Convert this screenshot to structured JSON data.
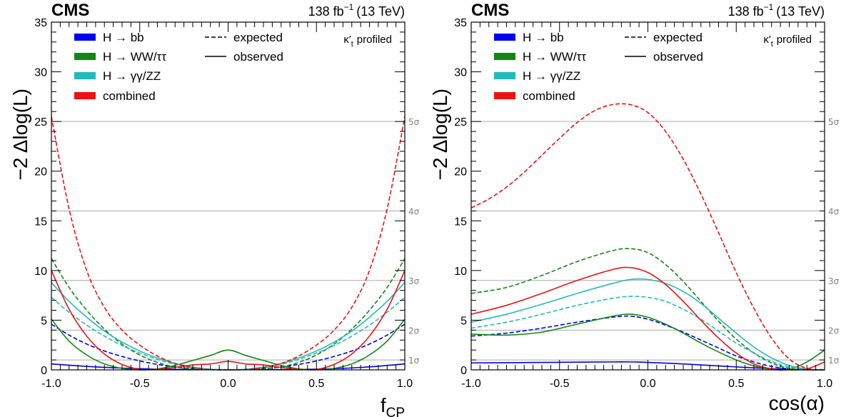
{
  "colors": {
    "bb": "#0000ee",
    "ww": "#118811",
    "gg": "#22bbbb",
    "comb": "#ee1111",
    "sigma": "#aaaaaa"
  },
  "chart_data": [
    {
      "type": "line",
      "experiment": "CMS",
      "lumi": "138 fb",
      "lumi_exp": "−1",
      "energy": "(13 TeV)",
      "note": "κ′",
      "note_sub": "t",
      "note_rest": "profiled",
      "xlabel": "f",
      "xlabel_sub": "CP",
      "ylabel": "−2 Δlog(L)",
      "xlim": [
        -1.0,
        1.0
      ],
      "ylim": [
        0,
        35
      ],
      "xticks": [
        "-1.0",
        "-0.5",
        "0.0",
        "0.5",
        "1.0"
      ],
      "yticks": [
        "0",
        "5",
        "10",
        "15",
        "20",
        "25",
        "30",
        "35"
      ],
      "sigma_lines": [
        {
          "label": "1σ",
          "value": 1
        },
        {
          "label": "2σ",
          "value": 4
        },
        {
          "label": "3σ",
          "value": 9
        },
        {
          "label": "4σ",
          "value": 16
        },
        {
          "label": "5σ",
          "value": 25
        }
      ],
      "legend": [
        {
          "label": "H → bb",
          "key": "bb"
        },
        {
          "label": "H → WW/ττ",
          "key": "ww"
        },
        {
          "label": "H → γγ/ZZ",
          "key": "gg"
        },
        {
          "label": "combined",
          "key": "comb"
        },
        {
          "label": "expected",
          "style": "dashed"
        },
        {
          "label": "observed",
          "style": "solid"
        }
      ],
      "series": [
        {
          "channel": "bb",
          "style": "solid",
          "x": [
            -1,
            -0.8,
            -0.6,
            -0.4,
            -0.2,
            0,
            0.2,
            0.4,
            0.6,
            0.8,
            1
          ],
          "y": [
            0.6,
            0.35,
            0.18,
            0.08,
            0.03,
            0.02,
            0.02,
            0.04,
            0.12,
            0.3,
            0.6
          ]
        },
        {
          "channel": "bb",
          "style": "dashed",
          "x": [
            -1,
            -0.9,
            -0.8,
            -0.7,
            -0.6,
            -0.5,
            -0.4,
            -0.3,
            -0.2,
            0,
            0.2,
            0.3,
            0.4,
            0.5,
            0.6,
            0.7,
            0.8,
            0.9,
            1
          ],
          "y": [
            4.6,
            3.5,
            2.6,
            1.9,
            1.35,
            0.9,
            0.55,
            0.3,
            0.13,
            0.0,
            0.13,
            0.3,
            0.55,
            0.9,
            1.35,
            1.9,
            2.6,
            3.5,
            4.6
          ]
        },
        {
          "channel": "ww",
          "style": "solid",
          "x": [
            -1,
            -0.9,
            -0.8,
            -0.7,
            -0.6,
            -0.5,
            -0.4,
            -0.3,
            -0.2,
            -0.1,
            0,
            0.1,
            0.2,
            0.3,
            0.4,
            0.5,
            0.6,
            0.7,
            0.8,
            0.9,
            1
          ],
          "y": [
            5.1,
            2.9,
            1.5,
            0.6,
            0.15,
            0.0,
            0.1,
            0.45,
            0.95,
            1.45,
            2.0,
            1.45,
            0.95,
            0.45,
            0.1,
            0.0,
            0.15,
            0.6,
            1.5,
            2.9,
            5.1
          ]
        },
        {
          "channel": "ww",
          "style": "dashed",
          "x": [
            -1,
            -0.9,
            -0.8,
            -0.7,
            -0.6,
            -0.5,
            -0.4,
            -0.3,
            -0.2,
            -0.1,
            0,
            0.1,
            0.2,
            0.3,
            0.4,
            0.5,
            0.6,
            0.7,
            0.8,
            0.9,
            1
          ],
          "y": [
            11.2,
            8.3,
            6.0,
            4.1,
            2.6,
            1.5,
            0.75,
            0.3,
            0.1,
            0.02,
            0.0,
            0.02,
            0.1,
            0.3,
            0.75,
            1.5,
            2.6,
            4.1,
            6.0,
            8.3,
            11.2
          ]
        },
        {
          "channel": "gg",
          "style": "solid",
          "x": [
            -1,
            -0.9,
            -0.8,
            -0.7,
            -0.6,
            -0.5,
            -0.4,
            -0.3,
            -0.2,
            -0.1,
            0,
            0.1,
            0.2,
            0.3,
            0.4,
            0.5,
            0.6,
            0.7,
            0.8,
            0.9,
            1
          ],
          "y": [
            8.8,
            6.9,
            5.3,
            3.9,
            2.8,
            1.9,
            1.2,
            0.65,
            0.28,
            0.07,
            0.0,
            0.07,
            0.28,
            0.65,
            1.2,
            1.9,
            2.8,
            3.9,
            5.3,
            6.9,
            8.8
          ]
        },
        {
          "channel": "gg",
          "style": "dashed",
          "x": [
            -1,
            -0.9,
            -0.8,
            -0.7,
            -0.6,
            -0.5,
            -0.4,
            -0.3,
            -0.2,
            -0.1,
            0,
            0.1,
            0.2,
            0.3,
            0.4,
            0.5,
            0.6,
            0.7,
            0.8,
            0.9,
            1
          ],
          "y": [
            7.3,
            5.8,
            4.5,
            3.4,
            2.45,
            1.7,
            1.05,
            0.55,
            0.22,
            0.05,
            0.0,
            0.05,
            0.22,
            0.55,
            1.05,
            1.7,
            2.45,
            3.4,
            4.5,
            5.8,
            7.3
          ]
        },
        {
          "channel": "comb",
          "style": "solid",
          "x": [
            -1,
            -0.9,
            -0.8,
            -0.7,
            -0.6,
            -0.5,
            -0.4,
            -0.3,
            -0.2,
            -0.1,
            0,
            0.1,
            0.2,
            0.3,
            0.4,
            0.5,
            0.6,
            0.7,
            0.8,
            0.9,
            1
          ],
          "y": [
            10.0,
            6.1,
            3.4,
            1.6,
            0.55,
            0.05,
            0.05,
            0.25,
            0.5,
            0.6,
            0.85,
            0.6,
            0.5,
            0.25,
            0.05,
            0.05,
            0.55,
            1.6,
            3.4,
            6.1,
            10.0
          ]
        },
        {
          "channel": "comb",
          "style": "dashed",
          "x": [
            -1,
            -0.9,
            -0.8,
            -0.7,
            -0.6,
            -0.5,
            -0.4,
            -0.3,
            -0.2,
            -0.1,
            0,
            0.1,
            0.2,
            0.3,
            0.4,
            0.5,
            0.6,
            0.7,
            0.8,
            0.9,
            1
          ],
          "y": [
            25.5,
            16.2,
            10.0,
            6.3,
            4.0,
            2.5,
            1.4,
            0.65,
            0.22,
            0.03,
            0.0,
            0.03,
            0.22,
            0.65,
            1.4,
            2.5,
            4.0,
            6.3,
            10.0,
            16.2,
            25.5
          ]
        }
      ]
    },
    {
      "type": "line",
      "experiment": "CMS",
      "lumi": "138 fb",
      "lumi_exp": "−1",
      "energy": "(13 TeV)",
      "note": "κ′",
      "note_sub": "t",
      "note_rest": "profiled",
      "xlabel": "cos(α)",
      "ylabel": "−2 Δlog(L)",
      "xlim": [
        -1.0,
        1.0
      ],
      "ylim": [
        0,
        35
      ],
      "xticks": [
        "-1.0",
        "-0.5",
        "0.0",
        "0.5",
        "1.0"
      ],
      "yticks": [
        "0",
        "5",
        "10",
        "15",
        "20",
        "25",
        "30",
        "35"
      ],
      "sigma_lines": [
        {
          "label": "1σ",
          "value": 1
        },
        {
          "label": "2σ",
          "value": 4
        },
        {
          "label": "3σ",
          "value": 9
        },
        {
          "label": "4σ",
          "value": 16
        },
        {
          "label": "5σ",
          "value": 25
        }
      ],
      "legend": [
        {
          "label": "H → bb",
          "key": "bb"
        },
        {
          "label": "H → WW/ττ",
          "key": "ww"
        },
        {
          "label": "H → γγ/ZZ",
          "key": "gg"
        },
        {
          "label": "combined",
          "key": "comb"
        },
        {
          "label": "expected",
          "style": "dashed"
        },
        {
          "label": "observed",
          "style": "solid"
        }
      ],
      "series": [
        {
          "channel": "bb",
          "style": "solid",
          "x": [
            -1,
            -0.8,
            -0.6,
            -0.4,
            -0.2,
            -0.1,
            0,
            0.2,
            0.4,
            0.6,
            0.8,
            0.9,
            1
          ],
          "y": [
            0.7,
            0.72,
            0.75,
            0.78,
            0.8,
            0.8,
            0.75,
            0.6,
            0.4,
            0.2,
            0.05,
            0.01,
            0.0
          ]
        },
        {
          "channel": "bb",
          "style": "dashed",
          "x": [
            -1,
            -0.8,
            -0.6,
            -0.4,
            -0.2,
            -0.1,
            0,
            0.1,
            0.2,
            0.3,
            0.4,
            0.5,
            0.6,
            0.7,
            0.8,
            0.9,
            1
          ],
          "y": [
            3.4,
            3.7,
            4.2,
            4.8,
            5.3,
            5.4,
            5.1,
            4.5,
            3.8,
            3.0,
            2.2,
            1.4,
            0.8,
            0.35,
            0.1,
            0.01,
            0.0
          ]
        },
        {
          "channel": "ww",
          "style": "solid",
          "x": [
            -1,
            -0.8,
            -0.6,
            -0.4,
            -0.2,
            -0.1,
            0,
            0.1,
            0.2,
            0.3,
            0.4,
            0.5,
            0.6,
            0.7,
            0.8,
            0.9,
            1
          ],
          "y": [
            3.6,
            3.5,
            3.8,
            4.6,
            5.4,
            5.6,
            5.3,
            4.6,
            3.7,
            2.7,
            1.8,
            1.0,
            0.4,
            0.05,
            0.05,
            0.8,
            2.0
          ]
        },
        {
          "channel": "ww",
          "style": "dashed",
          "x": [
            -1,
            -0.8,
            -0.6,
            -0.4,
            -0.2,
            -0.1,
            0,
            0.1,
            0.2,
            0.3,
            0.4,
            0.5,
            0.6,
            0.7,
            0.8,
            0.9,
            1
          ],
          "y": [
            7.7,
            8.3,
            9.5,
            10.9,
            12.0,
            12.2,
            11.8,
            10.6,
            8.9,
            6.9,
            4.9,
            3.1,
            1.7,
            0.7,
            0.15,
            0.0,
            0.05
          ]
        },
        {
          "channel": "gg",
          "style": "solid",
          "x": [
            -1,
            -0.8,
            -0.6,
            -0.4,
            -0.2,
            -0.1,
            0,
            0.1,
            0.2,
            0.3,
            0.4,
            0.5,
            0.6,
            0.7,
            0.8,
            0.9,
            1
          ],
          "y": [
            4.8,
            5.6,
            6.6,
            7.7,
            8.7,
            9.1,
            9.1,
            8.7,
            7.9,
            6.7,
            5.2,
            3.7,
            2.3,
            1.2,
            0.45,
            0.08,
            0.0
          ]
        },
        {
          "channel": "gg",
          "style": "dashed",
          "x": [
            -1,
            -0.8,
            -0.6,
            -0.4,
            -0.2,
            -0.1,
            0,
            0.1,
            0.2,
            0.3,
            0.4,
            0.5,
            0.6,
            0.7,
            0.8,
            0.9,
            1
          ],
          "y": [
            4.2,
            4.8,
            5.6,
            6.5,
            7.2,
            7.4,
            7.3,
            6.9,
            6.1,
            5.1,
            3.9,
            2.7,
            1.7,
            0.85,
            0.3,
            0.05,
            0.0
          ]
        },
        {
          "channel": "comb",
          "style": "solid",
          "x": [
            -1,
            -0.8,
            -0.6,
            -0.4,
            -0.2,
            -0.1,
            0,
            0.1,
            0.2,
            0.3,
            0.4,
            0.5,
            0.6,
            0.7,
            0.8,
            0.9,
            1
          ],
          "y": [
            5.6,
            6.5,
            7.7,
            9.0,
            10.1,
            10.3,
            9.8,
            8.6,
            6.9,
            5.0,
            3.2,
            1.7,
            0.6,
            0.1,
            0.0,
            0.1,
            0.8
          ]
        },
        {
          "channel": "comb",
          "style": "dashed",
          "x": [
            -1,
            -0.9,
            -0.8,
            -0.7,
            -0.6,
            -0.5,
            -0.4,
            -0.3,
            -0.2,
            -0.1,
            0,
            0.1,
            0.2,
            0.3,
            0.4,
            0.5,
            0.6,
            0.7,
            0.8,
            0.9,
            1
          ],
          "y": [
            16.3,
            17.2,
            18.4,
            19.9,
            21.6,
            23.3,
            24.9,
            26.1,
            26.7,
            26.7,
            25.9,
            24.0,
            21.2,
            17.7,
            13.8,
            9.8,
            6.2,
            3.2,
            1.1,
            0.15,
            0.0
          ]
        }
      ]
    }
  ]
}
